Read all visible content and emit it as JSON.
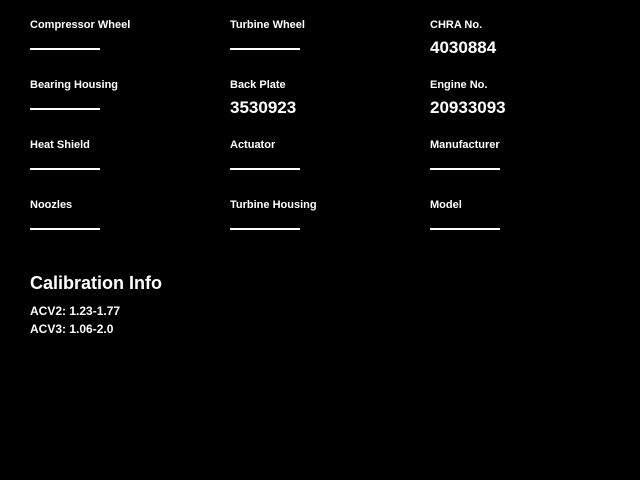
{
  "colors": {
    "background": "#000000",
    "text": "#ffffff"
  },
  "form": {
    "fields": [
      {
        "label": "Compressor Wheel",
        "value": ""
      },
      {
        "label": "Turbine Wheel",
        "value": ""
      },
      {
        "label": "CHRA No.",
        "value": "4030884"
      },
      {
        "label": "Bearing Housing",
        "value": ""
      },
      {
        "label": "Back Plate",
        "value": "3530923"
      },
      {
        "label": "Engine No.",
        "value": "20933093"
      },
      {
        "label": "Heat Shield",
        "value": ""
      },
      {
        "label": "Actuator",
        "value": ""
      },
      {
        "label": "Manufacturer",
        "value": ""
      },
      {
        "label": "Noozles",
        "value": ""
      },
      {
        "label": "Turbine Housing",
        "value": ""
      },
      {
        "label": "Model",
        "value": ""
      }
    ]
  },
  "calibration": {
    "title": "Calibration Info",
    "lines": [
      "ACV2: 1.23-1.77",
      "ACV3: 1.06-2.0"
    ]
  }
}
